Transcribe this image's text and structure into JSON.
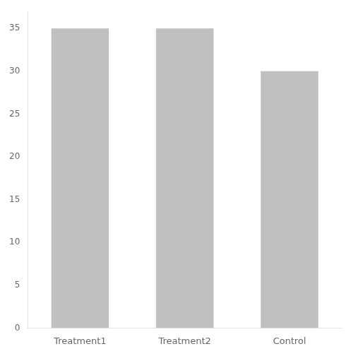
{
  "chart_data": {
    "type": "bar",
    "categories": [
      "Treatment1",
      "Treatment2",
      "Control"
    ],
    "values": [
      35,
      35,
      30
    ],
    "color": "#c0c0c0",
    "ylim": [
      0,
      37
    ],
    "yticks": [
      0,
      5,
      10,
      15,
      20,
      25,
      30,
      35
    ],
    "grid": false
  }
}
